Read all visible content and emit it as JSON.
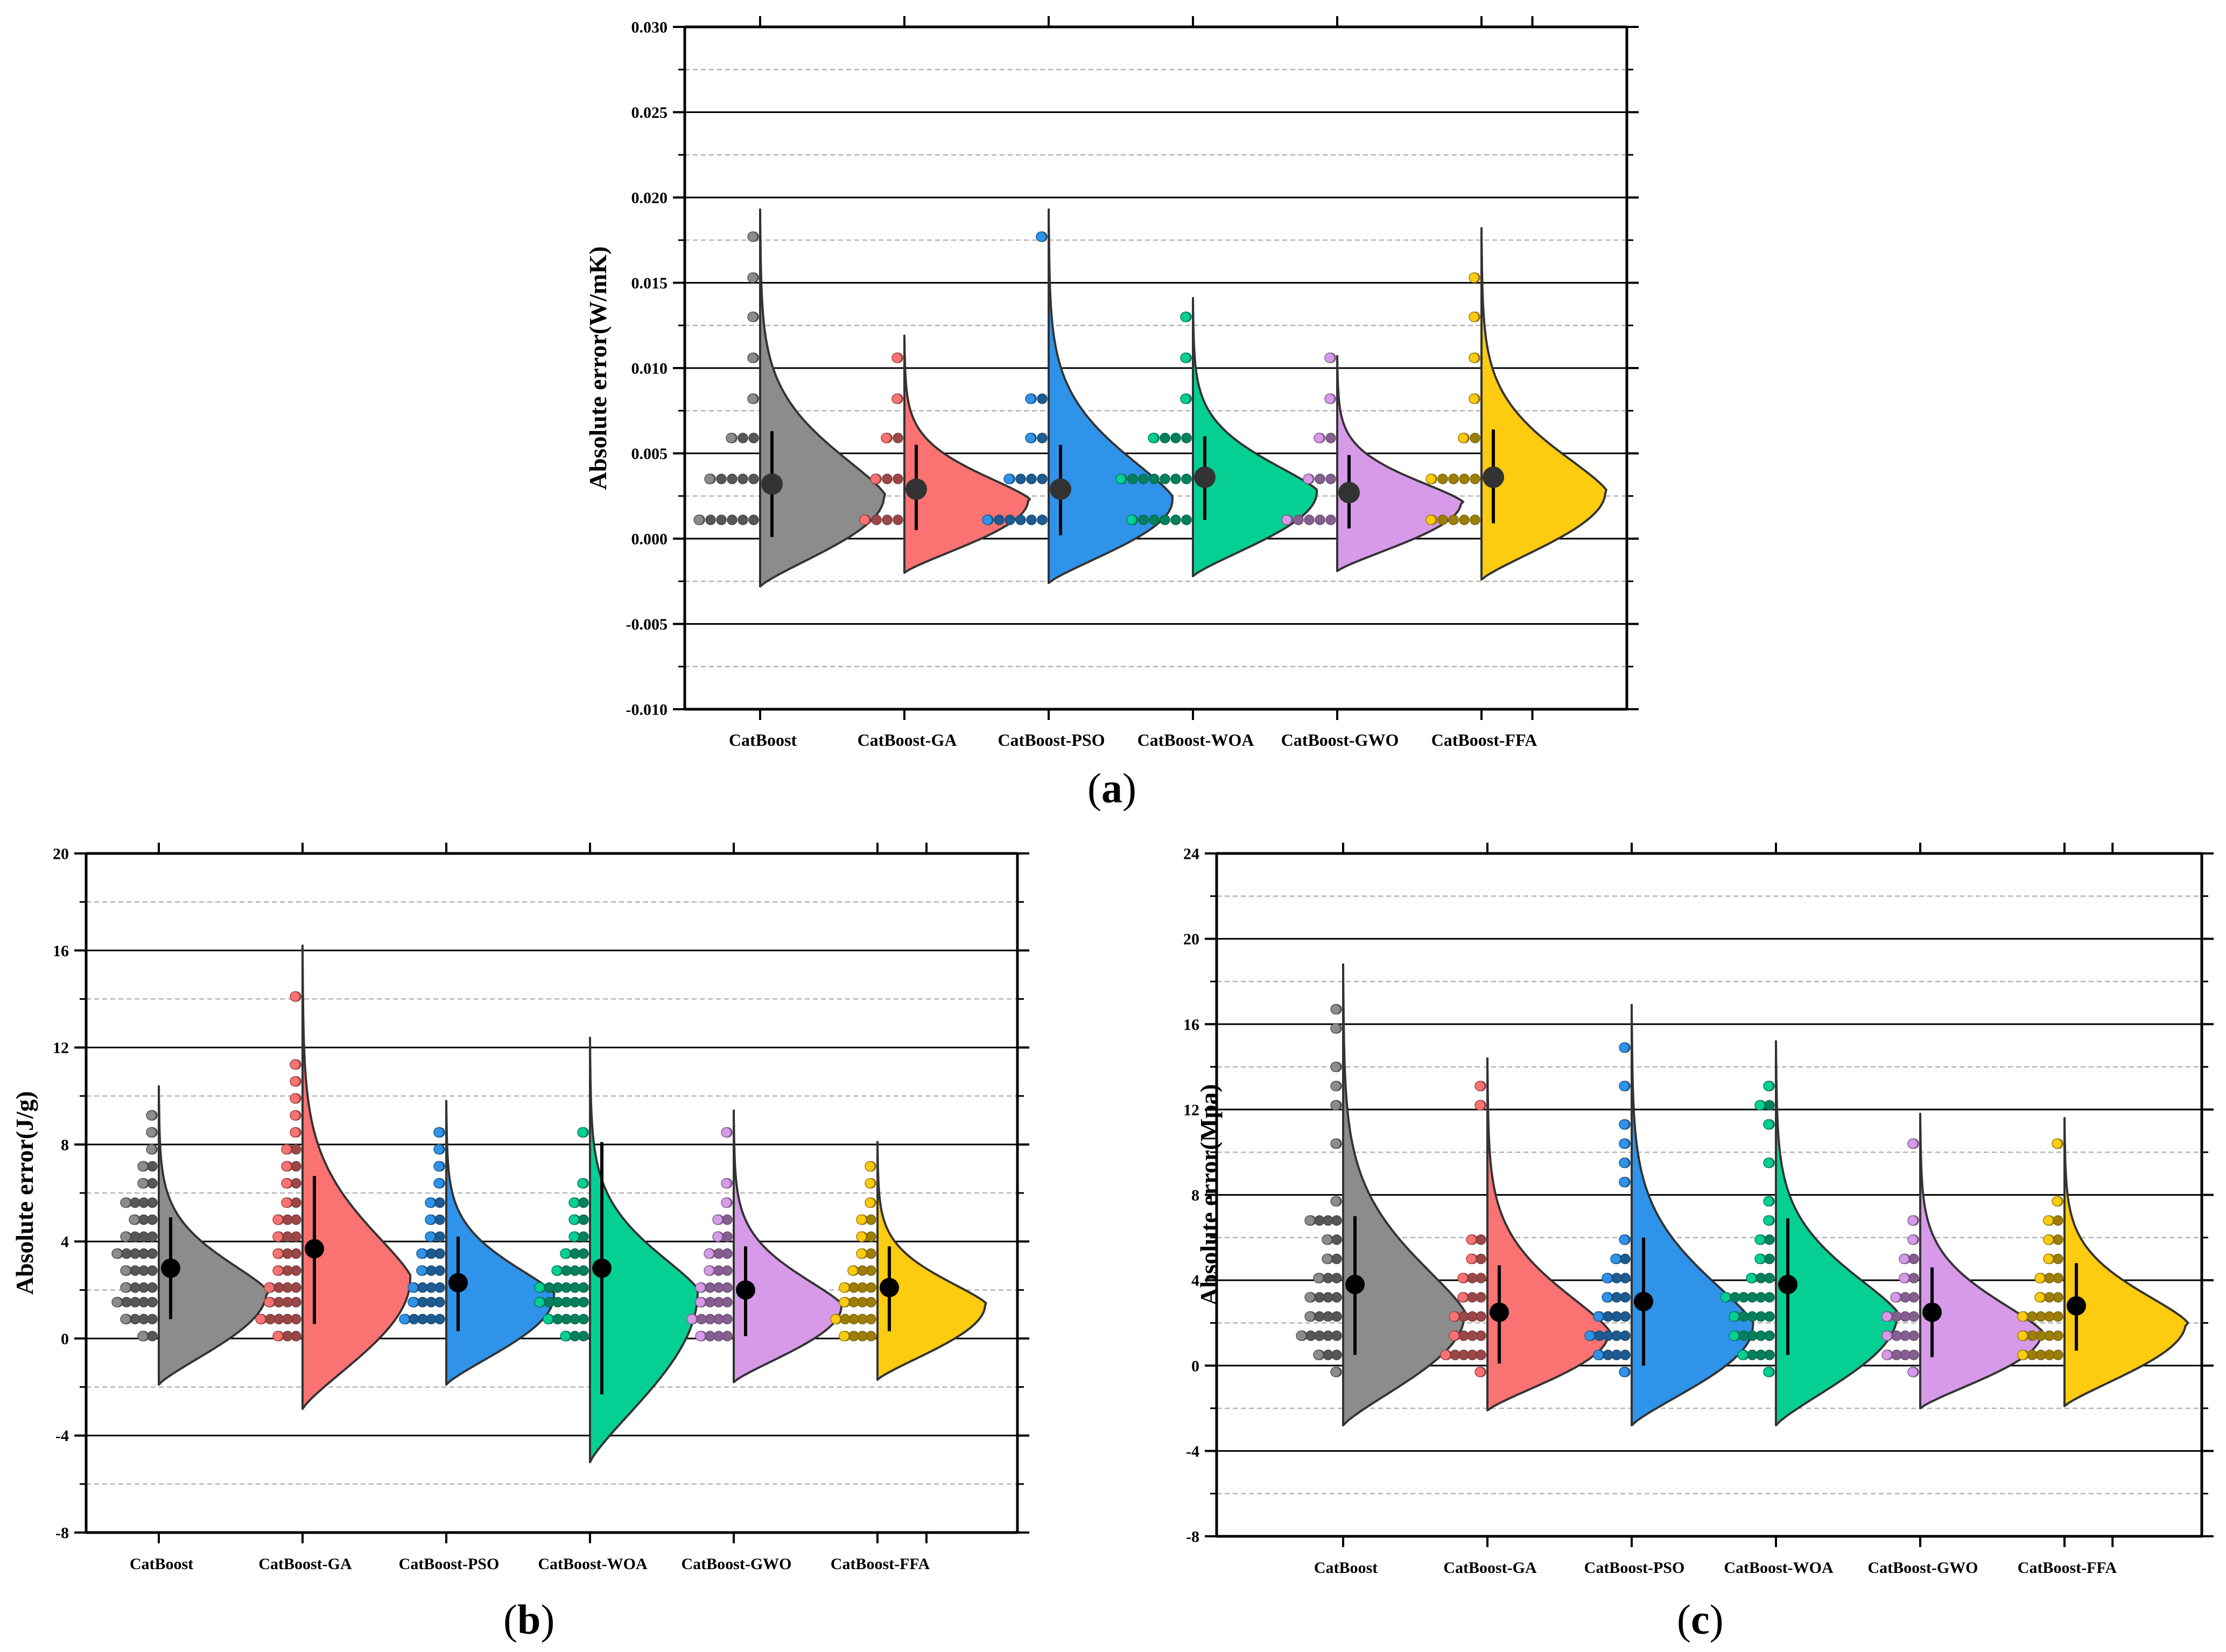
{
  "colors": {
    "CatBoost": "#8c8c8c",
    "CatBoost-GA": "#fb7272",
    "CatBoost-PSO": "#2f93ea",
    "CatBoost-WOA": "#06cf94",
    "CatBoost-GWO": "#d69ae8",
    "CatBoost-FFA": "#fdcb0f"
  },
  "panel_labels": [
    "(a)",
    "(b)",
    "(c)"
  ],
  "chart_data": [
    {
      "type": "raincloud",
      "panel": "a",
      "title": "",
      "xlabel": "",
      "ylabel": "Absolute error(W/mK)",
      "categories": [
        "CatBoost",
        "CatBoost-GA",
        "CatBoost-PSO",
        "CatBoost-WOA",
        "CatBoost-GWO",
        "CatBoost-FFA"
      ],
      "ylim": [
        -0.01,
        0.03
      ],
      "yticks": [
        -0.01,
        -0.005,
        0,
        0.005,
        0.01,
        0.015,
        0.02,
        0.025,
        0.03
      ],
      "ytick_labels": [
        "-0.010",
        "-0.005",
        "0.000",
        "0.005",
        "0.010",
        "0.015",
        "0.020",
        "0.025",
        "0.030"
      ],
      "minor_gridlines": [
        -0.0075,
        -0.0025,
        0.0025,
        0.0075,
        0.0125,
        0.0175,
        0.0225,
        0.0275
      ],
      "series": [
        {
          "name": "CatBoost",
          "mean": 0.0032,
          "whisker": [
            0.0001,
            0.0063
          ],
          "violin_range": [
            -0.0028,
            0.0193
          ],
          "bins": [
            [
              0.0011,
              6
            ],
            [
              0.0035,
              5
            ],
            [
              0.0059,
              3
            ],
            [
              0.0082,
              1
            ],
            [
              0.0106,
              1
            ],
            [
              0.013,
              1
            ],
            [
              0.0153,
              1
            ],
            [
              0.0177,
              1
            ]
          ]
        },
        {
          "name": "CatBoost-GA",
          "mean": 0.0029,
          "whisker": [
            0.0005,
            0.0055
          ],
          "violin_range": [
            -0.002,
            0.0119
          ],
          "bins": [
            [
              0.0011,
              4
            ],
            [
              0.0035,
              3
            ],
            [
              0.0059,
              2
            ],
            [
              0.0082,
              1
            ],
            [
              0.0106,
              1
            ]
          ]
        },
        {
          "name": "CatBoost-PSO",
          "mean": 0.0029,
          "whisker": [
            0.0002,
            0.0055
          ],
          "violin_range": [
            -0.0026,
            0.0193
          ],
          "bins": [
            [
              0.0011,
              6
            ],
            [
              0.0035,
              4
            ],
            [
              0.0059,
              2
            ],
            [
              0.0082,
              2
            ],
            [
              0.0177,
              1
            ]
          ]
        },
        {
          "name": "CatBoost-WOA",
          "mean": 0.0036,
          "whisker": [
            0.0011,
            0.006
          ],
          "violin_range": [
            -0.0022,
            0.0141
          ],
          "bins": [
            [
              0.0011,
              6
            ],
            [
              0.0035,
              7
            ],
            [
              0.0059,
              4
            ],
            [
              0.0082,
              1
            ],
            [
              0.0106,
              1
            ],
            [
              0.013,
              1
            ]
          ]
        },
        {
          "name": "CatBoost-GWO",
          "mean": 0.0027,
          "whisker": [
            0.0006,
            0.0049
          ],
          "violin_range": [
            -0.0019,
            0.0107
          ],
          "bins": [
            [
              0.0011,
              5
            ],
            [
              0.0035,
              3
            ],
            [
              0.0059,
              2
            ],
            [
              0.0082,
              1
            ],
            [
              0.0106,
              1
            ]
          ]
        },
        {
          "name": "CatBoost-FFA",
          "mean": 0.0036,
          "whisker": [
            0.0009,
            0.0064
          ],
          "violin_range": [
            -0.0024,
            0.0182
          ],
          "bins": [
            [
              0.0011,
              5
            ],
            [
              0.0035,
              5
            ],
            [
              0.0059,
              2
            ],
            [
              0.0082,
              1
            ],
            [
              0.0106,
              1
            ],
            [
              0.013,
              1
            ],
            [
              0.0153,
              1
            ]
          ]
        }
      ]
    },
    {
      "type": "raincloud",
      "panel": "b",
      "title": "",
      "xlabel": "",
      "ylabel": "Absolute error(J/g)",
      "categories": [
        "CatBoost",
        "CatBoost-GA",
        "CatBoost-PSO",
        "CatBoost-WOA",
        "CatBoost-GWO",
        "CatBoost-FFA"
      ],
      "ylim": [
        -8,
        20
      ],
      "yticks": [
        -8,
        -4,
        0,
        4,
        8,
        12,
        16,
        20
      ],
      "ytick_labels": [
        "-8",
        "-4",
        "0",
        "4",
        "8",
        "12",
        "16",
        "20"
      ],
      "minor_gridlines": [
        -6,
        -2,
        2,
        6,
        10,
        14,
        18
      ],
      "series": [
        {
          "name": "CatBoost",
          "mean": 2.9,
          "whisker": [
            0.8,
            5.0
          ],
          "violin_range": [
            -1.9,
            10.4
          ],
          "bins": [
            [
              0.1,
              2
            ],
            [
              0.8,
              4
            ],
            [
              1.5,
              5
            ],
            [
              2.1,
              4
            ],
            [
              2.8,
              4
            ],
            [
              3.5,
              5
            ],
            [
              4.2,
              4
            ],
            [
              4.9,
              3
            ],
            [
              5.6,
              4
            ],
            [
              6.4,
              2
            ],
            [
              7.1,
              2
            ],
            [
              7.8,
              1
            ],
            [
              8.5,
              1
            ],
            [
              9.2,
              1
            ]
          ]
        },
        {
          "name": "CatBoost-GA",
          "mean": 3.7,
          "whisker": [
            0.6,
            6.7
          ],
          "violin_range": [
            -2.9,
            16.2
          ],
          "bins": [
            [
              0.1,
              3
            ],
            [
              0.8,
              5
            ],
            [
              1.5,
              4
            ],
            [
              2.1,
              4
            ],
            [
              2.8,
              3
            ],
            [
              3.5,
              3
            ],
            [
              4.2,
              3
            ],
            [
              4.9,
              3
            ],
            [
              5.6,
              2
            ],
            [
              6.4,
              2
            ],
            [
              7.1,
              2
            ],
            [
              7.8,
              2
            ],
            [
              8.5,
              1
            ],
            [
              9.2,
              1
            ],
            [
              9.9,
              1
            ],
            [
              10.6,
              1
            ],
            [
              11.3,
              1
            ],
            [
              14.1,
              1
            ]
          ]
        },
        {
          "name": "CatBoost-PSO",
          "mean": 2.3,
          "whisker": [
            0.3,
            4.2
          ],
          "violin_range": [
            -1.9,
            9.8
          ],
          "bins": [
            [
              0.8,
              5
            ],
            [
              1.5,
              4
            ],
            [
              2.1,
              4
            ],
            [
              2.8,
              3
            ],
            [
              3.5,
              3
            ],
            [
              4.2,
              2
            ],
            [
              4.9,
              2
            ],
            [
              5.6,
              2
            ],
            [
              6.4,
              1
            ],
            [
              7.1,
              1
            ],
            [
              7.8,
              1
            ],
            [
              8.5,
              1
            ]
          ]
        },
        {
          "name": "CatBoost-WOA",
          "mean": 2.9,
          "whisker": [
            -2.3,
            8.1
          ],
          "violin_range": [
            -5.1,
            12.4
          ],
          "bins": [
            [
              0.1,
              3
            ],
            [
              0.8,
              5
            ],
            [
              1.5,
              6
            ],
            [
              2.1,
              6
            ],
            [
              2.8,
              4
            ],
            [
              3.5,
              3
            ],
            [
              4.2,
              2
            ],
            [
              4.9,
              2
            ],
            [
              5.6,
              2
            ],
            [
              6.4,
              1
            ],
            [
              8.5,
              1
            ]
          ]
        },
        {
          "name": "CatBoost-GWO",
          "mean": 2.0,
          "whisker": [
            0.1,
            3.8
          ],
          "violin_range": [
            -1.8,
            9.4
          ],
          "bins": [
            [
              0.1,
              4
            ],
            [
              0.8,
              5
            ],
            [
              1.5,
              4
            ],
            [
              2.1,
              4
            ],
            [
              2.8,
              3
            ],
            [
              3.5,
              3
            ],
            [
              4.2,
              2
            ],
            [
              4.9,
              2
            ],
            [
              5.6,
              1
            ],
            [
              6.4,
              1
            ],
            [
              8.5,
              1
            ]
          ]
        },
        {
          "name": "CatBoost-FFA",
          "mean": 2.1,
          "whisker": [
            0.3,
            3.8
          ],
          "violin_range": [
            -1.7,
            8.1
          ],
          "bins": [
            [
              0.1,
              4
            ],
            [
              0.8,
              5
            ],
            [
              1.5,
              4
            ],
            [
              2.1,
              4
            ],
            [
              2.8,
              3
            ],
            [
              3.5,
              2
            ],
            [
              4.2,
              2
            ],
            [
              4.9,
              2
            ],
            [
              5.6,
              1
            ],
            [
              6.4,
              1
            ],
            [
              7.1,
              1
            ]
          ]
        }
      ]
    },
    {
      "type": "raincloud",
      "panel": "c",
      "title": "",
      "xlabel": "",
      "ylabel": "Absolute error(Mpa)",
      "categories": [
        "CatBoost",
        "CatBoost-GA",
        "CatBoost-PSO",
        "CatBoost-WOA",
        "CatBoost-GWO",
        "CatBoost-FFA"
      ],
      "ylim": [
        -8,
        24
      ],
      "yticks": [
        -8,
        -4,
        0,
        4,
        8,
        12,
        16,
        20,
        24
      ],
      "ytick_labels": [
        "-8",
        "-4",
        "0",
        "4",
        "8",
        "12",
        "16",
        "20",
        "24"
      ],
      "minor_gridlines": [
        -6,
        -2,
        2,
        6,
        10,
        14,
        18,
        22
      ],
      "series": [
        {
          "name": "CatBoost",
          "mean": 3.8,
          "whisker": [
            0.5,
            7.0
          ],
          "violin_range": [
            -2.8,
            18.8
          ],
          "bins": [
            [
              -0.3,
              1
            ],
            [
              0.5,
              3
            ],
            [
              1.4,
              5
            ],
            [
              2.3,
              4
            ],
            [
              3.2,
              4
            ],
            [
              4.1,
              3
            ],
            [
              5.0,
              2
            ],
            [
              5.9,
              2
            ],
            [
              6.8,
              4
            ],
            [
              7.7,
              1
            ],
            [
              10.4,
              1
            ],
            [
              12.2,
              1
            ],
            [
              13.1,
              1
            ],
            [
              14.0,
              1
            ],
            [
              15.8,
              1
            ],
            [
              16.7,
              1
            ]
          ]
        },
        {
          "name": "CatBoost-GA",
          "mean": 2.5,
          "whisker": [
            0.1,
            4.7
          ],
          "violin_range": [
            -2.1,
            14.4
          ],
          "bins": [
            [
              -0.3,
              1
            ],
            [
              0.5,
              5
            ],
            [
              1.4,
              4
            ],
            [
              2.3,
              4
            ],
            [
              3.2,
              3
            ],
            [
              4.1,
              3
            ],
            [
              5.0,
              2
            ],
            [
              5.9,
              2
            ],
            [
              12.2,
              1
            ],
            [
              13.1,
              1
            ]
          ]
        },
        {
          "name": "CatBoost-PSO",
          "mean": 3.0,
          "whisker": [
            0.0,
            6.0
          ],
          "violin_range": [
            -2.8,
            16.9
          ],
          "bins": [
            [
              -0.3,
              1
            ],
            [
              0.5,
              4
            ],
            [
              1.4,
              5
            ],
            [
              2.3,
              4
            ],
            [
              3.2,
              3
            ],
            [
              4.1,
              3
            ],
            [
              5.0,
              2
            ],
            [
              5.9,
              1
            ],
            [
              8.6,
              1
            ],
            [
              9.5,
              1
            ],
            [
              10.4,
              1
            ],
            [
              11.3,
              1
            ],
            [
              13.1,
              1
            ],
            [
              14.9,
              1
            ]
          ]
        },
        {
          "name": "CatBoost-WOA",
          "mean": 3.8,
          "whisker": [
            0.5,
            6.9
          ],
          "violin_range": [
            -2.8,
            15.2
          ],
          "bins": [
            [
              -0.3,
              1
            ],
            [
              0.5,
              4
            ],
            [
              1.4,
              5
            ],
            [
              2.3,
              5
            ],
            [
              3.2,
              6
            ],
            [
              4.1,
              3
            ],
            [
              5.0,
              2
            ],
            [
              5.9,
              2
            ],
            [
              6.8,
              1
            ],
            [
              7.7,
              1
            ],
            [
              9.5,
              1
            ],
            [
              11.3,
              1
            ],
            [
              12.2,
              2
            ],
            [
              13.1,
              1
            ]
          ]
        },
        {
          "name": "CatBoost-GWO",
          "mean": 2.5,
          "whisker": [
            0.4,
            4.6
          ],
          "violin_range": [
            -2.0,
            11.8
          ],
          "bins": [
            [
              -0.3,
              1
            ],
            [
              0.5,
              4
            ],
            [
              1.4,
              4
            ],
            [
              2.3,
              4
            ],
            [
              3.2,
              3
            ],
            [
              4.1,
              2
            ],
            [
              5.0,
              2
            ],
            [
              5.9,
              1
            ],
            [
              6.8,
              1
            ],
            [
              10.4,
              1
            ]
          ]
        },
        {
          "name": "CatBoost-FFA",
          "mean": 2.8,
          "whisker": [
            0.7,
            4.8
          ],
          "violin_range": [
            -1.9,
            11.6
          ],
          "bins": [
            [
              0.5,
              5
            ],
            [
              1.4,
              5
            ],
            [
              2.3,
              5
            ],
            [
              3.2,
              3
            ],
            [
              4.1,
              3
            ],
            [
              5.0,
              2
            ],
            [
              5.9,
              2
            ],
            [
              6.8,
              2
            ],
            [
              7.7,
              1
            ],
            [
              10.4,
              1
            ]
          ]
        }
      ]
    }
  ]
}
